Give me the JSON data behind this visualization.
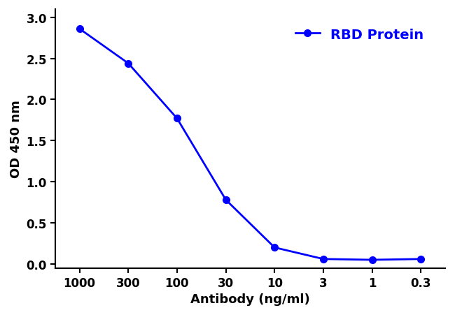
{
  "x_labels": [
    "1000",
    "300",
    "100",
    "30",
    "10",
    "3",
    "1",
    "0.3"
  ],
  "x_positions": [
    0,
    1,
    2,
    3,
    4,
    5,
    6,
    7
  ],
  "y_values": [
    2.86,
    2.44,
    1.77,
    0.78,
    0.2,
    0.06,
    0.05,
    0.06
  ],
  "line_color": "#0000FF",
  "marker": "o",
  "marker_size": 7,
  "marker_facecolor": "#0000FF",
  "linewidth": 2.0,
  "xlabel": "Antibody (ng/ml)",
  "ylabel": "OD 450 nm",
  "legend_label": "RBD Protein",
  "legend_color": "#0000FF",
  "ylim": [
    -0.05,
    3.1
  ],
  "yticks": [
    0.0,
    0.5,
    1.0,
    1.5,
    2.0,
    2.5,
    3.0
  ],
  "background_color": "#ffffff",
  "axis_label_color": "#000000",
  "xlabel_fontsize": 13,
  "ylabel_fontsize": 13,
  "tick_fontsize": 12,
  "legend_fontsize": 14
}
